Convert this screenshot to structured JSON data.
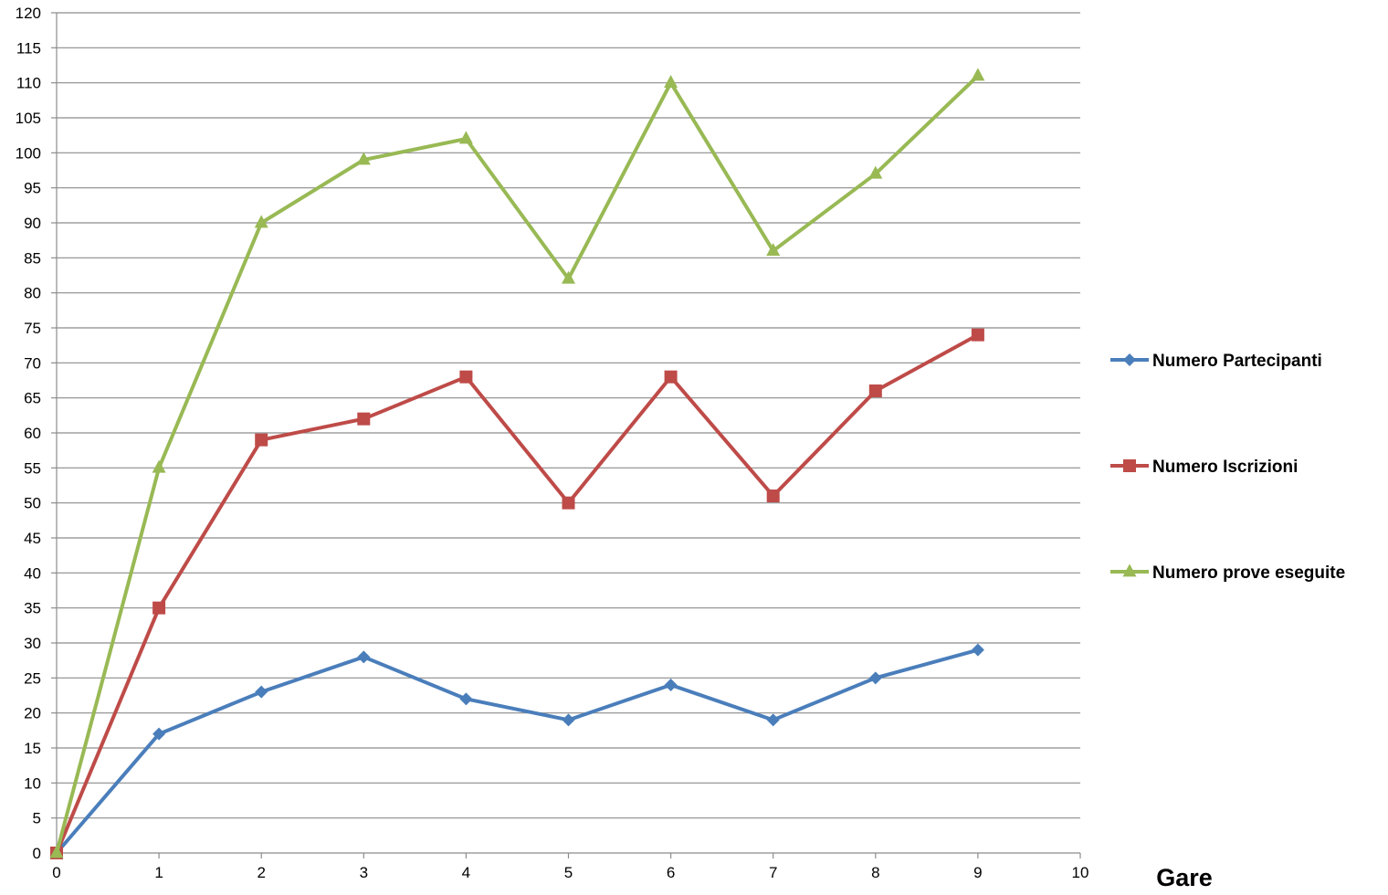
{
  "chart_data": {
    "type": "line",
    "title": "",
    "xlabel": "Gare",
    "ylabel": "",
    "x": [
      0,
      1,
      2,
      3,
      4,
      5,
      6,
      7,
      8,
      9
    ],
    "xlim": [
      0,
      10
    ],
    "ylim": [
      0,
      120
    ],
    "x_ticks": [
      "0",
      "1",
      "2",
      "3",
      "4",
      "5",
      "6",
      "7",
      "8",
      "9",
      "10"
    ],
    "y_ticks": [
      "0",
      "5",
      "10",
      "15",
      "20",
      "25",
      "30",
      "35",
      "40",
      "45",
      "50",
      "55",
      "60",
      "65",
      "70",
      "75",
      "80",
      "85",
      "90",
      "95",
      "100",
      "105",
      "110",
      "115",
      "120"
    ],
    "grid": "horizontal",
    "legend_position": "right",
    "series": [
      {
        "name": "Numero Partecipanti",
        "color": "#4a7ebb",
        "marker": "diamond",
        "values": [
          0,
          17,
          23,
          28,
          22,
          19,
          24,
          19,
          25,
          29
        ]
      },
      {
        "name": "Numero Iscrizioni",
        "color": "#be4b48",
        "marker": "square",
        "values": [
          0,
          35,
          59,
          62,
          68,
          50,
          68,
          51,
          66,
          74
        ]
      },
      {
        "name": "Numero prove eseguite",
        "color": "#98b954",
        "marker": "triangle",
        "values": [
          0,
          55,
          90,
          99,
          102,
          82,
          110,
          86,
          97,
          111
        ]
      }
    ]
  }
}
